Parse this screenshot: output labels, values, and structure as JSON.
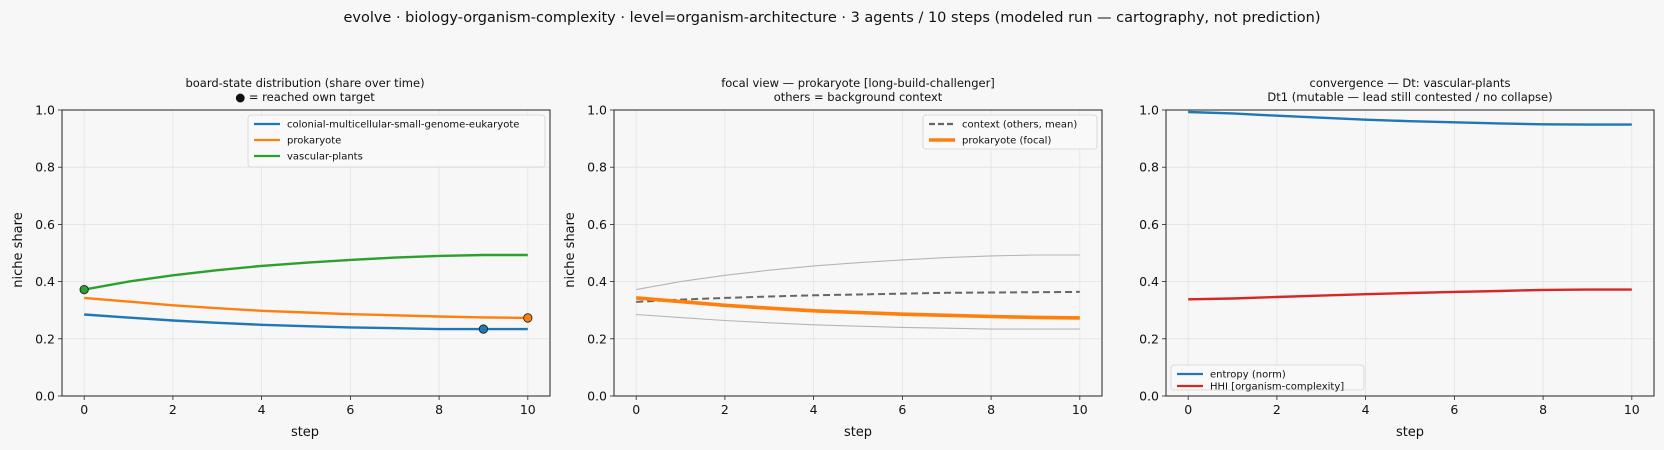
{
  "figure": {
    "suptitle": "evolve · biology-organism-complexity · level=organism-architecture · 3 agents / 10 steps   (modeled run — cartography, not prediction)"
  },
  "colors": {
    "background": "#f7f7f7",
    "colonial": "#1f77b4",
    "prokaryote": "#ff7f0e",
    "vascular": "#2ca02c",
    "context_mean": "#666666",
    "context_lines": "#b5b5b5",
    "entropy": "#1f77b4",
    "hhi": "#d62728",
    "grid": "#e3e3e3"
  },
  "chart_data": [
    {
      "type": "line",
      "title": "board-state distribution (share over time)",
      "subtitle": "● = reached own target",
      "xlabel": "step",
      "ylabel": "niche share",
      "xlim": [
        -0.5,
        10.5
      ],
      "ylim": [
        0.0,
        1.0
      ],
      "xticks": [
        "0",
        "2",
        "4",
        "6",
        "8",
        "10"
      ],
      "yticks": [
        "0.0",
        "0.2",
        "0.4",
        "0.6",
        "0.8",
        "1.0"
      ],
      "grid": true,
      "legend_position": "top-right",
      "x": [
        0,
        1,
        2,
        3,
        4,
        5,
        6,
        7,
        8,
        9,
        10
      ],
      "series": [
        {
          "name": "colonial-multicellular-small-genome-eukaryote",
          "color": "#1f77b4",
          "values": [
            0.285,
            0.274,
            0.264,
            0.256,
            0.249,
            0.244,
            0.24,
            0.237,
            0.234,
            0.234,
            0.234
          ],
          "target_marker": {
            "x": 9,
            "y": 0.234
          }
        },
        {
          "name": "prokaryote",
          "color": "#ff7f0e",
          "values": [
            0.343,
            0.33,
            0.317,
            0.307,
            0.298,
            0.292,
            0.286,
            0.282,
            0.278,
            0.275,
            0.273
          ],
          "target_marker": {
            "x": 10,
            "y": 0.273
          }
        },
        {
          "name": "vascular-plants",
          "color": "#2ca02c",
          "values": [
            0.372,
            0.4,
            0.422,
            0.44,
            0.455,
            0.466,
            0.476,
            0.484,
            0.49,
            0.493,
            0.493
          ],
          "target_marker": {
            "x": 0,
            "y": 0.372
          }
        }
      ]
    },
    {
      "type": "line",
      "title": "focal view — prokaryote  [long-build-challenger]",
      "subtitle": "others = background context",
      "xlabel": "step",
      "ylabel": "niche share",
      "xlim": [
        -0.5,
        10.5
      ],
      "ylim": [
        0.0,
        1.0
      ],
      "xticks": [
        "0",
        "2",
        "4",
        "6",
        "8",
        "10"
      ],
      "yticks": [
        "0.0",
        "0.2",
        "0.4",
        "0.6",
        "0.8",
        "1.0"
      ],
      "grid": true,
      "legend_position": "top-right",
      "x": [
        0,
        1,
        2,
        3,
        4,
        5,
        6,
        7,
        8,
        9,
        10
      ],
      "background_series": [
        {
          "values": [
            0.372,
            0.4,
            0.422,
            0.44,
            0.455,
            0.466,
            0.476,
            0.484,
            0.49,
            0.493,
            0.493
          ]
        },
        {
          "values": [
            0.285,
            0.274,
            0.264,
            0.256,
            0.249,
            0.244,
            0.24,
            0.237,
            0.234,
            0.234,
            0.234
          ]
        }
      ],
      "series": [
        {
          "name": "context (others, mean)",
          "color": "#666666",
          "dashed": true,
          "values": [
            0.329,
            0.337,
            0.343,
            0.348,
            0.352,
            0.355,
            0.358,
            0.361,
            0.362,
            0.363,
            0.364
          ]
        },
        {
          "name": "prokaryote (focal)",
          "color": "#ff7f0e",
          "values": [
            0.343,
            0.33,
            0.317,
            0.307,
            0.298,
            0.292,
            0.286,
            0.282,
            0.278,
            0.275,
            0.273
          ]
        }
      ]
    },
    {
      "type": "line",
      "title": "convergence — Dt: vascular-plants",
      "subtitle": "Dt1 (mutable — lead still contested / no collapse)",
      "xlabel": "step",
      "ylabel": "",
      "xlim": [
        -0.5,
        10.5
      ],
      "ylim": [
        0.0,
        1.0
      ],
      "xticks": [
        "0",
        "2",
        "4",
        "6",
        "8",
        "10"
      ],
      "yticks": [
        "0.0",
        "0.2",
        "0.4",
        "0.6",
        "0.8",
        "1.0"
      ],
      "grid": true,
      "legend_position": "bottom-left",
      "x": [
        0,
        1,
        2,
        3,
        4,
        5,
        6,
        7,
        8,
        9,
        10
      ],
      "series": [
        {
          "name": "entropy (norm)",
          "color": "#1f77b4",
          "values": [
            0.993,
            0.988,
            0.98,
            0.973,
            0.966,
            0.961,
            0.957,
            0.953,
            0.95,
            0.949,
            0.949
          ]
        },
        {
          "name": "HHI [organism-complexity]",
          "color": "#d62728",
          "values": [
            0.338,
            0.341,
            0.346,
            0.351,
            0.356,
            0.36,
            0.364,
            0.367,
            0.371,
            0.372,
            0.372
          ]
        }
      ]
    }
  ]
}
